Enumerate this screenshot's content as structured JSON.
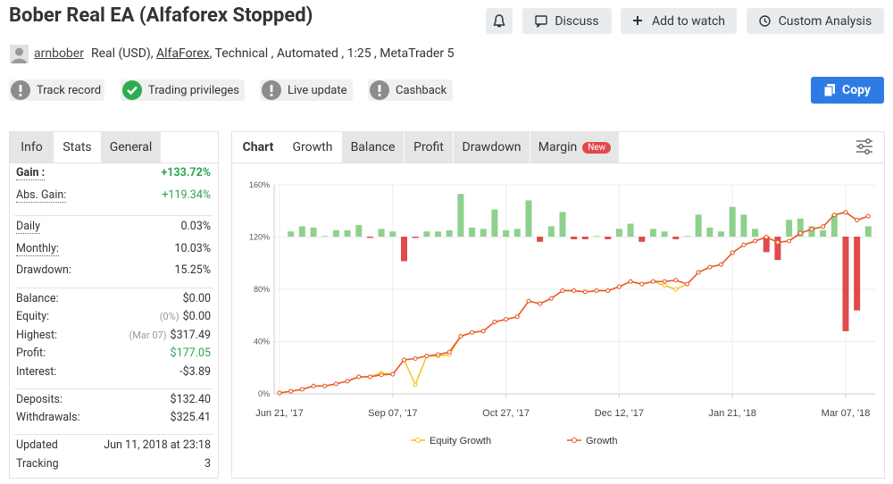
{
  "header": {
    "title": "Bober Real EA (Alfaforex Stopped)",
    "buttons": [
      "Discuss",
      "Add to watch",
      "Custom Analysis"
    ]
  },
  "meta": {
    "author": "arnbober",
    "account": "Real (USD),",
    "broker": "AlfaForex",
    "details": ", Technical , Automated , 1:25 , MetaTrader 5"
  },
  "badges": [
    "Track record",
    "Trading privileges",
    "Live update",
    "Cashback"
  ],
  "copy": "Copy",
  "stats_tabs": [
    "Info",
    "Stats",
    "General"
  ],
  "stats": [
    [
      {
        "label": "Gain :",
        "value": "+133.72%",
        "color": "#2ea44f"
      },
      {
        "label": "Abs. Gain:",
        "value": "+119.34%",
        "color": "#2ea44f"
      }
    ],
    [
      {
        "label": "Daily",
        "value": "0.03%"
      },
      {
        "label": "Monthly:",
        "value": "10.03%"
      },
      {
        "label": "Drawdown:",
        "value": "15.25%"
      }
    ],
    [
      {
        "label": "Balance:",
        "value": "$0.00"
      },
      {
        "label": "Equity:",
        "note": "(0%)",
        "value": "$0.00"
      },
      {
        "label": "Highest:",
        "note": "(Mar 07)",
        "value": "$317.49"
      },
      {
        "label": "Profit:",
        "value": "$177.05",
        "color": "#2ea44f"
      },
      {
        "label": "Interest:",
        "value": "-$3.89"
      }
    ],
    [
      {
        "label": "Deposits:",
        "value": "$132.40"
      },
      {
        "label": "Withdrawals:",
        "value": "$325.41"
      }
    ],
    [
      {
        "label": "Updated",
        "value": "Jun 11, 2018 at 23:18"
      },
      {
        "label": "Tracking",
        "value": "3"
      }
    ]
  ],
  "chart_tabs": [
    "Chart",
    "Growth",
    "Balance",
    "Profit",
    "Drawdown",
    "Margin"
  ],
  "new_badge": "New",
  "chart_data": {
    "type": "line",
    "categories": [
      "Jun 21, '17",
      null,
      null,
      null,
      null,
      null,
      null,
      null,
      null,
      null,
      "Sep 07, '17",
      null,
      null,
      null,
      null,
      null,
      null,
      null,
      null,
      null,
      "Oct 27, '17",
      null,
      null,
      null,
      null,
      null,
      null,
      null,
      null,
      null,
      "Dec 12, '17",
      null,
      null,
      null,
      null,
      null,
      null,
      null,
      null,
      null,
      "Jan 21, '18",
      null,
      null,
      null,
      null,
      null,
      null,
      null,
      null,
      null,
      "Mar 07, '18",
      null,
      null
    ],
    "series": [
      {
        "name": "Equity Growth",
        "color": "#f2c318",
        "values": [
          0.7,
          2,
          3.4,
          6,
          6,
          7.6,
          9.7,
          13,
          13,
          16,
          15,
          26,
          7,
          29,
          29,
          30,
          44,
          47,
          48,
          55,
          57,
          59,
          71,
          69,
          73,
          79,
          79,
          78,
          79,
          79,
          82,
          86,
          84,
          86,
          83,
          80,
          84,
          93,
          97,
          99,
          108,
          114,
          117,
          120,
          116,
          117,
          123,
          126,
          128,
          137,
          139,
          133,
          136
        ]
      },
      {
        "name": "Growth",
        "color": "#e8552b",
        "values": [
          0.7,
          2,
          3.4,
          6,
          6,
          7.6,
          9.7,
          13,
          13,
          14.5,
          15,
          26,
          27,
          29,
          30,
          32,
          44,
          47,
          48,
          55,
          57,
          59,
          71,
          69,
          73,
          79,
          79,
          78,
          79,
          79,
          82,
          86,
          84,
          86,
          86,
          87,
          84,
          93,
          97,
          99,
          108,
          114,
          117,
          120,
          116,
          117,
          123,
          126,
          128,
          137,
          139,
          133,
          136
        ]
      }
    ],
    "bars": [
      null,
      4,
      8,
      7,
      0.5,
      5,
      5,
      9,
      -1,
      6,
      4,
      -19,
      -1,
      4,
      4,
      5,
      33,
      7,
      6,
      21,
      5,
      6,
      28,
      -4,
      8,
      19,
      -2,
      -2,
      0.5,
      -2,
      6,
      10,
      -4,
      6,
      4,
      -2,
      0.5,
      17,
      7,
      4,
      23,
      17,
      6,
      -12,
      -18,
      13,
      14,
      8,
      5,
      17,
      -73,
      -57,
      8
    ],
    "bar_colors": {
      "positive": "#8dd18d",
      "negative": "#e04a4a"
    },
    "ylim": [
      0,
      160
    ],
    "yticks": [
      {
        "value": 0,
        "label": "0%"
      },
      {
        "value": 40,
        "label": "40%"
      },
      {
        "value": 80,
        "label": "80%"
      },
      {
        "value": 120,
        "label": "120%"
      },
      {
        "value": 160,
        "label": "160%"
      }
    ],
    "grid": true
  }
}
